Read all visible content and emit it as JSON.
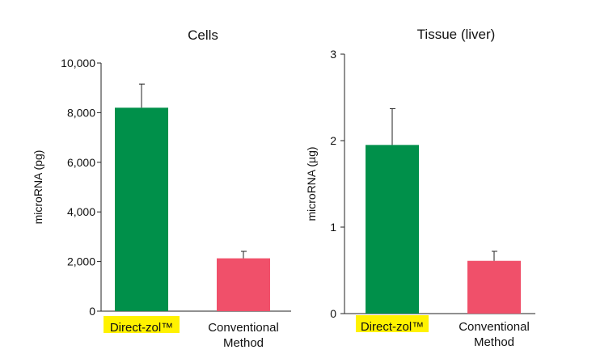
{
  "chart_data": [
    {
      "type": "bar",
      "title": "Cells",
      "ylabel": "microRNA (pg)",
      "xlabel": "",
      "categories": [
        "Direct-zol™",
        "Conventional Method"
      ],
      "category_lines": [
        [
          "Direct-zol™"
        ],
        [
          "Conventional",
          "Method"
        ]
      ],
      "values": [
        8200,
        2130
      ],
      "errors": [
        950,
        280
      ],
      "ylim": [
        0,
        10000
      ],
      "yticks": [
        0,
        2000,
        4000,
        6000,
        8000,
        10000
      ],
      "ytick_labels": [
        "0",
        "2,000",
        "4,000",
        "6,000",
        "8,000",
        "10,000"
      ],
      "colors": [
        "#00904a",
        "#f0506a"
      ],
      "highlight": "#fff200",
      "grid": false,
      "legend": "none"
    },
    {
      "type": "bar",
      "title": "Tissue (liver)",
      "ylabel": "microRNA (µg)",
      "xlabel": "",
      "categories": [
        "Direct-zol™",
        "Conventional Method"
      ],
      "category_lines": [
        [
          "Direct-zol™"
        ],
        [
          "Conventional",
          "Method"
        ]
      ],
      "values": [
        1.95,
        0.61
      ],
      "errors": [
        0.42,
        0.11
      ],
      "ylim": [
        0,
        3
      ],
      "yticks": [
        0,
        1,
        2,
        3
      ],
      "ytick_labels": [
        "0",
        "1",
        "2",
        "3"
      ],
      "colors": [
        "#00904a",
        "#f0506a"
      ],
      "highlight": "#fff200",
      "grid": false,
      "legend": "none"
    }
  ]
}
